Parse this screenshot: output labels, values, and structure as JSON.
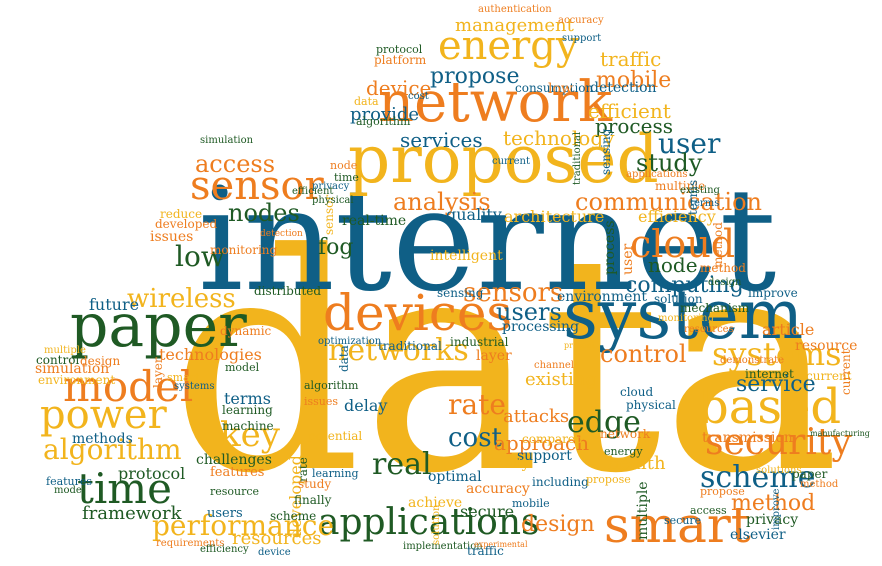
{
  "colors": {
    "blue": "#0f5f86",
    "orange": "#ee7d1f",
    "yellow": "#f2b41d",
    "green": "#1f5a24"
  },
  "words": [
    "data",
    "internet",
    "proposed",
    "network",
    "system",
    "paper",
    "devices",
    "energy",
    "sensor",
    "model",
    "power",
    "time",
    "based",
    "smart",
    "security",
    "applications",
    "networks",
    "systems",
    "scheme",
    "key",
    "cloud",
    "wireless",
    "nodes",
    "service",
    "control",
    "edge",
    "algorithm",
    "performance",
    "communication",
    "access",
    "user",
    "study",
    "low",
    "sensors",
    "real",
    "users",
    "analysis",
    "rate",
    "cost",
    "method",
    "design",
    "framework",
    "mobile",
    "efficient",
    "process",
    "propose",
    "device",
    "traffic",
    "management",
    "technology",
    "services",
    "computing",
    "node",
    "fog",
    "efficiency",
    "resources",
    "approach",
    "protocol",
    "architecture",
    "provide",
    "quality",
    "detection",
    "consumption",
    "authentication",
    "accuracy",
    "support",
    "industrial",
    "transmission",
    "privacy",
    "elsevier",
    "solution",
    "challenges",
    "features",
    "methods",
    "delay",
    "optimal",
    "potential",
    "health",
    "existing",
    "environment",
    "monitoring",
    "simulation",
    "intelligent",
    "mechanism",
    "improve",
    "technologies",
    "terms",
    "dynamic",
    "attacks",
    "article",
    "reduce",
    "developed",
    "issues",
    "future",
    "distributed",
    "resource",
    "layer",
    "finally",
    "secure",
    "current",
    "achieve",
    "compared",
    "including",
    "implementation",
    "platform",
    "sensing",
    "processing",
    "real-time",
    "multiple",
    "traditional",
    "optimization",
    "machine",
    "learning",
    "demonstrate",
    "physical",
    "internet",
    "solutions",
    "requirements",
    "experimental",
    "manufacturing",
    "channel",
    "present"
  ]
}
